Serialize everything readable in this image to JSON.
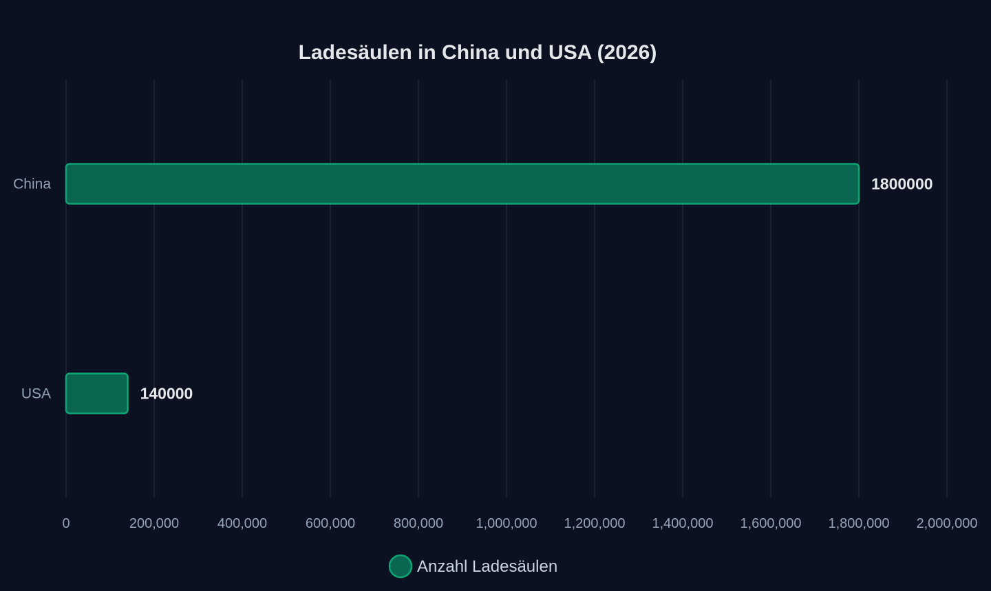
{
  "chart_data": {
    "type": "bar",
    "orientation": "horizontal",
    "title": "Ladesäulen in China und USA (2026)",
    "categories": [
      "China",
      "USA"
    ],
    "series": [
      {
        "name": "Anzahl Ladesäulen",
        "values": [
          1800000,
          140000
        ],
        "data_labels": [
          "1800000",
          "140000"
        ]
      }
    ],
    "xlim": [
      0,
      2000000
    ],
    "x_ticks": [
      0,
      200000,
      400000,
      600000,
      800000,
      1000000,
      1200000,
      1400000,
      1600000,
      1800000,
      2000000
    ],
    "x_tick_labels": [
      "0",
      "200,000",
      "400,000",
      "600,000",
      "800,000",
      "1,000,000",
      "1,200,000",
      "1,400,000",
      "1,600,000",
      "1,800,000",
      "2,000,000"
    ],
    "grid": true,
    "legend_position": "bottom-center"
  },
  "colors": {
    "background": "#0b1120",
    "bar_fill": "#0a6650",
    "bar_stroke": "#10a374",
    "grid": "#1f2937",
    "title": "#e5e7eb",
    "tick_text": "#94a3b8",
    "data_label": "#e5e7eb",
    "legend_text": "#cbd5e1"
  }
}
